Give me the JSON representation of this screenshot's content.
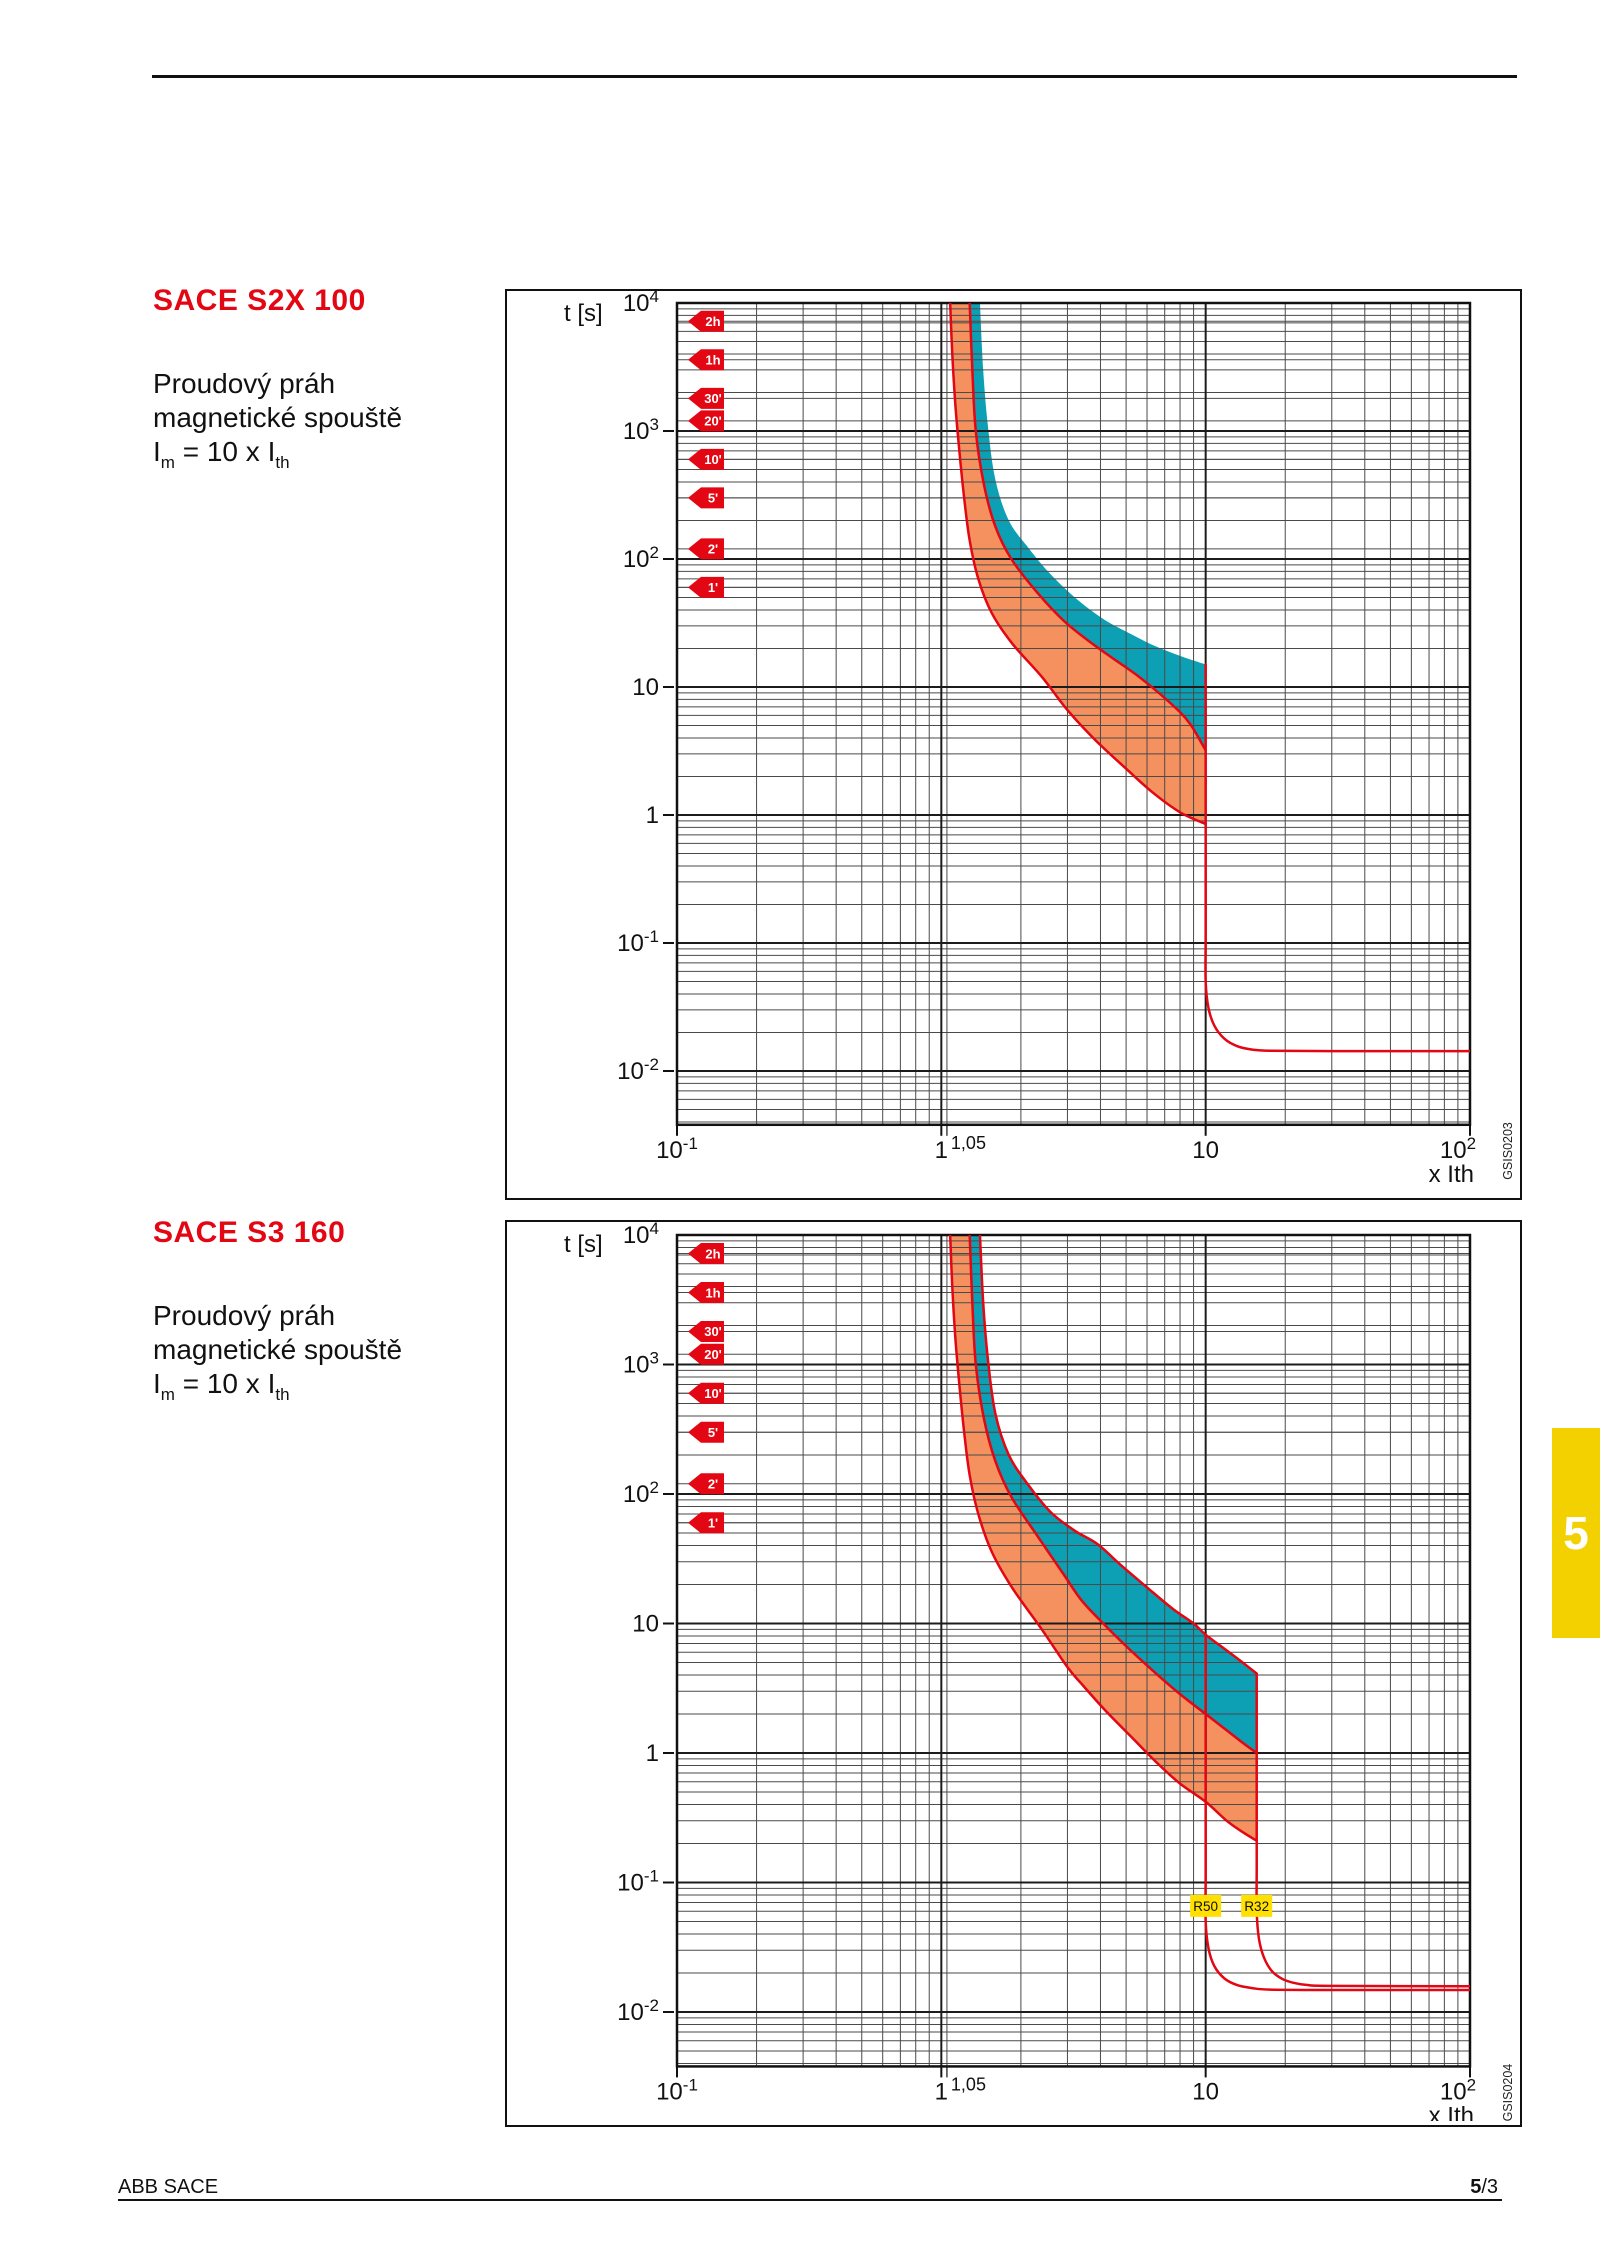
{
  "page": {
    "side_tab": "5",
    "footer": {
      "left": "ABB SACE",
      "page_bold": "5",
      "page_rest": "/3"
    }
  },
  "colors": {
    "red": "#e30613",
    "orange_band": "#f4915f",
    "teal_band": "#0d9fb4",
    "tab_yellow": "#f3d100",
    "label_yellow": "#ffe000",
    "grid_minor": "#4a4a4a",
    "grid_major": "#1c1c1c",
    "ink": "#111111"
  },
  "sections": [
    {
      "title": "SACE S2X 100",
      "desc1": "Proudový práh",
      "desc2": "magnetické spouště",
      "formula": {
        "i1": "I",
        "s1": "m",
        "mid": " = 10 x ",
        "i2": "I",
        "s2": "th"
      }
    },
    {
      "title": "SACE S3 160",
      "desc1": "Proudový práh",
      "desc2": "magnetické spouště",
      "formula": {
        "i1": "I",
        "s1": "m",
        "mid": " = 10 x ",
        "i2": "I",
        "s2": "th"
      }
    }
  ],
  "chart_data": [
    {
      "type": "area",
      "title": "SACE S2X 100 thermal-magnetic trip curve",
      "ylabel": "t [s]",
      "xlabel": "x Ith",
      "figure_code": "GSIS0203",
      "grid_on": true,
      "x_range": [
        0.1,
        100
      ],
      "y_range": [
        0.0038,
        10000
      ],
      "special_x_gridline": 1.05,
      "x_ticks": [
        {
          "v": 0.1,
          "base": "10",
          "sup": "-1"
        },
        {
          "v": 1,
          "base": "1"
        },
        {
          "v": 1.05,
          "label": "1,05",
          "small": true,
          "dx": 4
        },
        {
          "v": 10,
          "base": "10"
        },
        {
          "v": 100,
          "base": "10",
          "sup": "2",
          "dx": -12
        }
      ],
      "y_ticks": [
        {
          "v": 10000,
          "base": "10",
          "sup": "4"
        },
        {
          "v": 1000,
          "base": "10",
          "sup": "3"
        },
        {
          "v": 100,
          "base": "10",
          "sup": "2"
        },
        {
          "v": 10,
          "base": "10"
        },
        {
          "v": 1,
          "base": "1"
        },
        {
          "v": 0.1,
          "base": "10",
          "sup": "-1"
        },
        {
          "v": 0.01,
          "base": "10",
          "sup": "-2"
        }
      ],
      "time_tags": [
        {
          "label": "2h",
          "t": 7200
        },
        {
          "label": "1h",
          "t": 3600
        },
        {
          "label": "30'",
          "t": 1800
        },
        {
          "label": "20'",
          "t": 1200
        },
        {
          "label": "10'",
          "t": 600
        },
        {
          "label": "5'",
          "t": 300
        },
        {
          "label": "2'",
          "t": 120
        },
        {
          "label": "1'",
          "t": 60
        }
      ],
      "curves": [
        {
          "id": "lower",
          "stroke": true,
          "points": [
            [
              1.08,
              10000
            ],
            [
              1.1,
              4000
            ],
            [
              1.13,
              1600
            ],
            [
              1.17,
              700
            ],
            [
              1.22,
              300
            ],
            [
              1.28,
              140
            ],
            [
              1.38,
              70
            ],
            [
              1.55,
              38
            ],
            [
              1.85,
              22
            ],
            [
              2.4,
              12
            ],
            [
              3.0,
              6.6
            ],
            [
              3.8,
              3.9
            ],
            [
              5.0,
              2.3
            ],
            [
              6.3,
              1.5
            ],
            [
              8.0,
              1.05
            ],
            [
              10,
              0.85
            ]
          ]
        },
        {
          "id": "mid",
          "stroke": true,
          "points": [
            [
              1.28,
              10000
            ],
            [
              1.31,
              3000
            ],
            [
              1.35,
              1000
            ],
            [
              1.45,
              380
            ],
            [
              1.6,
              180
            ],
            [
              1.84,
              100
            ],
            [
              2.3,
              55
            ],
            [
              2.9,
              33
            ],
            [
              3.6,
              23
            ],
            [
              4.5,
              16.5
            ],
            [
              5.6,
              12
            ],
            [
              7.4,
              7.4
            ],
            [
              8.7,
              5.2
            ],
            [
              10,
              3.2
            ]
          ]
        },
        {
          "id": "upper",
          "stroke": false,
          "points": [
            [
              1.4,
              10000
            ],
            [
              1.44,
              3000
            ],
            [
              1.5,
              1100
            ],
            [
              1.6,
              420
            ],
            [
              1.8,
              200
            ],
            [
              2.15,
              120
            ],
            [
              2.56,
              78
            ],
            [
              3.2,
              50
            ],
            [
              4.1,
              34
            ],
            [
              5.2,
              26
            ],
            [
              6.4,
              21
            ],
            [
              8.0,
              17.5
            ],
            [
              10,
              15
            ]
          ]
        }
      ],
      "bands": [
        {
          "name": "band-orange",
          "color_key": "orange_band",
          "between": [
            "lower",
            "mid"
          ]
        },
        {
          "name": "band-teal",
          "color_key": "teal_band",
          "between": [
            "mid",
            "upper"
          ]
        }
      ],
      "trip_lines": [
        {
          "name": "magnetic-trip-10xIth",
          "points": [
            [
              10,
              15
            ],
            [
              10,
              3
            ],
            [
              10,
              0.6
            ],
            [
              10,
              0.12
            ],
            [
              10,
              0.05
            ],
            [
              10.25,
              0.031
            ],
            [
              10.8,
              0.0225
            ],
            [
              11.8,
              0.0178
            ],
            [
              13.2,
              0.0156
            ],
            [
              15.0,
              0.0147
            ],
            [
              17.5,
              0.0144
            ],
            [
              30,
              0.0143
            ],
            [
              100,
              0.0143
            ]
          ]
        }
      ],
      "threshold_labels": []
    },
    {
      "type": "area",
      "title": "SACE S3 160 thermal-magnetic trip curve",
      "ylabel": "t [s]",
      "xlabel": "x Ith",
      "figure_code": "GSIS0204",
      "grid_on": true,
      "x_range": [
        0.1,
        100
      ],
      "y_range": [
        0.0038,
        10000
      ],
      "special_x_gridline": 1.05,
      "x_ticks": [
        {
          "v": 0.1,
          "base": "10",
          "sup": "-1"
        },
        {
          "v": 1,
          "base": "1"
        },
        {
          "v": 1.05,
          "label": "1,05",
          "small": true,
          "dx": 4
        },
        {
          "v": 10,
          "base": "10"
        },
        {
          "v": 100,
          "base": "10",
          "sup": "2",
          "dx": -12
        }
      ],
      "y_ticks": [
        {
          "v": 10000,
          "base": "10",
          "sup": "4"
        },
        {
          "v": 1000,
          "base": "10",
          "sup": "3"
        },
        {
          "v": 100,
          "base": "10",
          "sup": "2"
        },
        {
          "v": 10,
          "base": "10"
        },
        {
          "v": 1,
          "base": "1"
        },
        {
          "v": 0.1,
          "base": "10",
          "sup": "-1"
        },
        {
          "v": 0.01,
          "base": "10",
          "sup": "-2"
        }
      ],
      "time_tags": [
        {
          "label": "2h",
          "t": 7200
        },
        {
          "label": "1h",
          "t": 3600
        },
        {
          "label": "30'",
          "t": 1800
        },
        {
          "label": "20'",
          "t": 1200
        },
        {
          "label": "10'",
          "t": 600
        },
        {
          "label": "5'",
          "t": 300
        },
        {
          "label": "2'",
          "t": 120
        },
        {
          "label": "1'",
          "t": 60
        }
      ],
      "curves": [
        {
          "id": "lower",
          "stroke": true,
          "points": [
            [
              1.08,
              10000
            ],
            [
              1.1,
              4000
            ],
            [
              1.13,
              1600
            ],
            [
              1.17,
              700
            ],
            [
              1.22,
              300
            ],
            [
              1.28,
              140
            ],
            [
              1.38,
              70
            ],
            [
              1.55,
              36
            ],
            [
              1.85,
              19
            ],
            [
              2.4,
              9
            ],
            [
              3.0,
              4.6
            ],
            [
              3.4,
              3.4
            ],
            [
              4.2,
              2.1
            ],
            [
              5.2,
              1.35
            ],
            [
              6.5,
              0.85
            ],
            [
              8.0,
              0.58
            ],
            [
              10,
              0.42
            ],
            [
              12.0,
              0.3
            ],
            [
              13.8,
              0.245
            ],
            [
              15.6,
              0.21
            ]
          ]
        },
        {
          "id": "mid",
          "stroke": true,
          "points": [
            [
              1.28,
              10000
            ],
            [
              1.31,
              3000
            ],
            [
              1.35,
              1000
            ],
            [
              1.45,
              380
            ],
            [
              1.6,
              180
            ],
            [
              1.84,
              95
            ],
            [
              2.3,
              48
            ],
            [
              2.9,
              24
            ],
            [
              3.4,
              15
            ],
            [
              4.2,
              9.5
            ],
            [
              5.2,
              6.2
            ],
            [
              6.5,
              4.1
            ],
            [
              8.0,
              2.85
            ],
            [
              10,
              2.0
            ],
            [
              12.0,
              1.5
            ],
            [
              13.8,
              1.2
            ],
            [
              15.6,
              1.0
            ]
          ]
        },
        {
          "id": "upper",
          "stroke": true,
          "points": [
            [
              1.4,
              10000
            ],
            [
              1.44,
              3000
            ],
            [
              1.5,
              1100
            ],
            [
              1.6,
              420
            ],
            [
              1.8,
              200
            ],
            [
              2.15,
              115
            ],
            [
              2.6,
              72
            ],
            [
              3.2,
              52
            ],
            [
              3.9,
              41
            ],
            [
              4.8,
              28
            ],
            [
              6.0,
              19
            ],
            [
              7.5,
              13
            ],
            [
              9.0,
              10
            ],
            [
              10,
              8.2
            ],
            [
              12.0,
              6.2
            ],
            [
              13.8,
              5.0
            ],
            [
              15.6,
              4.1
            ]
          ]
        }
      ],
      "bands": [
        {
          "name": "band-orange",
          "color_key": "orange_band",
          "between": [
            "lower",
            "mid"
          ]
        },
        {
          "name": "band-teal",
          "color_key": "teal_band",
          "between": [
            "mid",
            "upper"
          ]
        }
      ],
      "trip_lines": [
        {
          "name": "magnetic-trip-R50",
          "points": [
            [
              10,
              8.2
            ],
            [
              10,
              2
            ],
            [
              10,
              0.5
            ],
            [
              10,
              0.12
            ],
            [
              10,
              0.05
            ],
            [
              10.25,
              0.031
            ],
            [
              10.8,
              0.0225
            ],
            [
              11.8,
              0.0181
            ],
            [
              13.2,
              0.0161
            ],
            [
              15.0,
              0.0153
            ],
            [
              17.5,
              0.0149
            ],
            [
              30,
              0.0148
            ],
            [
              100,
              0.0148
            ]
          ]
        },
        {
          "name": "magnetic-trip-R32",
          "points": [
            [
              15.6,
              4.1
            ],
            [
              15.6,
              1.2
            ],
            [
              15.6,
              0.35
            ],
            [
              15.6,
              0.13
            ],
            [
              15.6,
              0.06
            ],
            [
              15.9,
              0.037
            ],
            [
              16.6,
              0.0265
            ],
            [
              17.8,
              0.0207
            ],
            [
              19.5,
              0.018
            ],
            [
              21.5,
              0.0168
            ],
            [
              24,
              0.0162
            ],
            [
              30,
              0.0159
            ],
            [
              100,
              0.0158
            ]
          ]
        }
      ],
      "threshold_labels": [
        {
          "text": "R50",
          "x": 10,
          "t": 0.066
        },
        {
          "text": "R32",
          "x": 15.6,
          "t": 0.066
        }
      ]
    }
  ]
}
